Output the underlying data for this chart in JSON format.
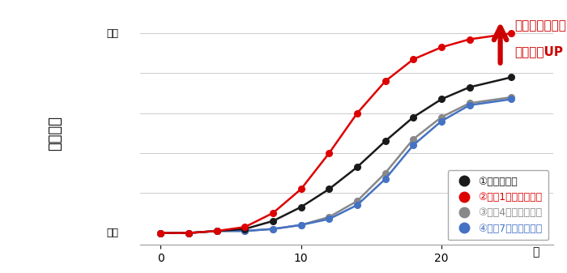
{
  "x": [
    0,
    2,
    4,
    6,
    8,
    10,
    12,
    14,
    16,
    18,
    20,
    22,
    25
  ],
  "series": {
    "black": [
      0.0,
      0.0,
      0.01,
      0.02,
      0.06,
      0.13,
      0.22,
      0.33,
      0.46,
      0.58,
      0.67,
      0.73,
      0.78
    ],
    "red": [
      0.0,
      0.0,
      0.01,
      0.03,
      0.1,
      0.22,
      0.4,
      0.6,
      0.76,
      0.87,
      0.93,
      0.97,
      1.0
    ],
    "gray": [
      0.0,
      0.0,
      0.01,
      0.01,
      0.02,
      0.04,
      0.08,
      0.16,
      0.3,
      0.47,
      0.58,
      0.65,
      0.68
    ],
    "blue": [
      0.0,
      0.0,
      0.01,
      0.01,
      0.02,
      0.04,
      0.07,
      0.14,
      0.27,
      0.44,
      0.56,
      0.64,
      0.67
    ]
  },
  "colors": {
    "black": "#1a1a1a",
    "red": "#dd0000",
    "gray": "#888888",
    "blue": "#4472c4"
  },
  "legend_labels": {
    "black": "①室温品のみ",
    "red": "②週に1回冷却育毛剤",
    "gray": "③週に4回冷却育毛剤",
    "blue": "④週に7回冷却育毛剤"
  },
  "legend_text_colors": {
    "black": "#1a1a1a",
    "red": "#dd0000",
    "gray": "#888888",
    "blue": "#4472c4"
  },
  "ylabel_text": "育毛実果",
  "xlabel_text": "日",
  "ytick_high": "高い",
  "ytick_low": "低い",
  "annotation_line1": "冷却制激により",
  "annotation_line2": "育毛実果UP",
  "arrow_color": "#cc0000",
  "yaxis_arrow_color": "#2255bb",
  "background_color": "#ffffff",
  "xlim": [
    -1.5,
    28
  ],
  "ylim": [
    -0.06,
    1.15
  ],
  "xticks": [
    0,
    10,
    20
  ],
  "grid_color": "#cccccc",
  "grid_lw": 0.7
}
